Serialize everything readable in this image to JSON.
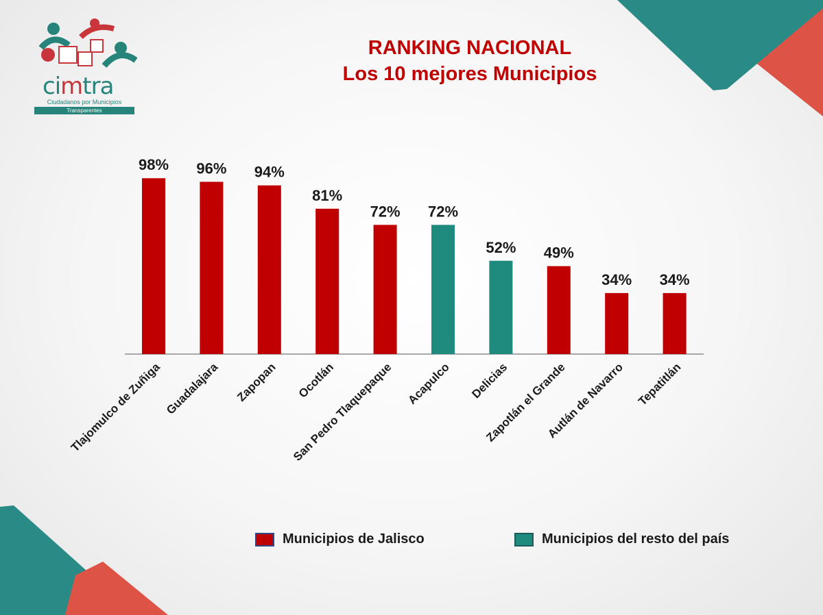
{
  "logo": {
    "wordmark_prefix": "ci",
    "wordmark_m": "m",
    "wordmark_suffix": "tra",
    "tagline": "Ciudadanos por Municipios",
    "tagline2": "Transparentes"
  },
  "title": {
    "line1": "RANKING NACIONAL",
    "line2": "Los 10 mejores Municipios"
  },
  "colors": {
    "jalisco": "#c00000",
    "resto": "#1f8a7e",
    "title": "#c00000"
  },
  "legend": {
    "jalisco_label": "Municipios de Jalisco",
    "resto_label": "Municipios del resto del país"
  },
  "chart_data": {
    "type": "bar",
    "title": "RANKING NACIONAL — Los 10 mejores Municipios",
    "categories": [
      "Tlajomulco de Zuñiga",
      "Guadalajara",
      "Zapopan",
      "Ocotlán",
      "San Pedro Tlaquepaque",
      "Acapulco",
      "Delicias",
      "Zapotlán el Grande",
      "Autlán de Navarro",
      "Tepatitlán"
    ],
    "values": [
      98,
      96,
      94,
      81,
      72,
      72,
      52,
      49,
      34,
      34
    ],
    "labels": [
      "98%",
      "96%",
      "94%",
      "81%",
      "72%",
      "72%",
      "52%",
      "49%",
      "34%",
      "34%"
    ],
    "groups": [
      "jalisco",
      "jalisco",
      "jalisco",
      "jalisco",
      "jalisco",
      "resto",
      "resto",
      "jalisco",
      "jalisco",
      "jalisco"
    ],
    "series": [
      {
        "name": "Municipios de Jalisco",
        "key": "jalisco"
      },
      {
        "name": "Municipios del resto del país",
        "key": "resto"
      }
    ],
    "ylim": [
      0,
      100
    ],
    "xlabel": "",
    "ylabel": "",
    "grid": false,
    "legend_position": "bottom"
  }
}
